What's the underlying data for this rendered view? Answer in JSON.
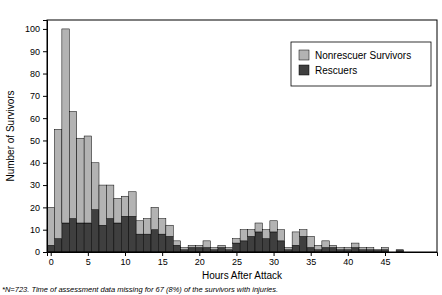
{
  "chart_data": {
    "type": "histogram",
    "x_label": "Hours After Attack",
    "y_label": "Number of Survivors",
    "annotations": [
      "*N=723. Time of assessment data missing for 67 (8%) of the survivors with injuries."
    ],
    "bins": [
      -0.5,
      0.5,
      1.5,
      2.5,
      3.5,
      4.5,
      5.5,
      6.5,
      7.5,
      8.5,
      9.5,
      10.5,
      11.5,
      12.5,
      13.5,
      14.5,
      15.5,
      16.5,
      17.5,
      18.5,
      19.5,
      20.5,
      21.5,
      22.5,
      23.5,
      24.5,
      25.5,
      26.5,
      27.5,
      28.5,
      29.5,
      30.5,
      31.5,
      32.5,
      33.5,
      34.5,
      35.5,
      36.5,
      37.5,
      38.5,
      39.5,
      40.5,
      41.5,
      42.5,
      43.5,
      44.5,
      45.5,
      46.5,
      47.5
    ],
    "series": [
      {
        "name": "Nonrescuer Survivors",
        "color": "#b3b3b3",
        "values": [
          17,
          49,
          87,
          48,
          38,
          39,
          21,
          18,
          15,
          11,
          9,
          11,
          6,
          7,
          10,
          7,
          5,
          2,
          1,
          1,
          1,
          3,
          1,
          1,
          1,
          2,
          5,
          3,
          4,
          4,
          5,
          5,
          1,
          6,
          3,
          5,
          2,
          3,
          1,
          1,
          1,
          2,
          1,
          1,
          0,
          1,
          0,
          0
        ]
      },
      {
        "name": "Rescuers",
        "color": "#3f3f3f",
        "values": [
          3,
          6,
          13,
          15,
          13,
          13,
          19,
          12,
          15,
          13,
          16,
          16,
          8,
          8,
          10,
          8,
          7,
          3,
          1,
          2,
          2,
          2,
          1,
          2,
          1,
          4,
          5,
          7,
          9,
          6,
          9,
          5,
          1,
          3,
          7,
          2,
          1,
          2,
          2,
          1,
          1,
          2,
          1,
          1,
          1,
          1,
          0,
          1
        ]
      }
    ],
    "stacked": true,
    "xlim": [
      -0.5,
      52
    ],
    "xticks": [
      0,
      5,
      10,
      15,
      20,
      25,
      30,
      35,
      40,
      45
    ],
    "ylim": [
      0,
      104
    ],
    "yticks": [
      0,
      10,
      20,
      30,
      40,
      50,
      60,
      70,
      80,
      90,
      100
    ],
    "legend": "upper right",
    "grid": false
  }
}
